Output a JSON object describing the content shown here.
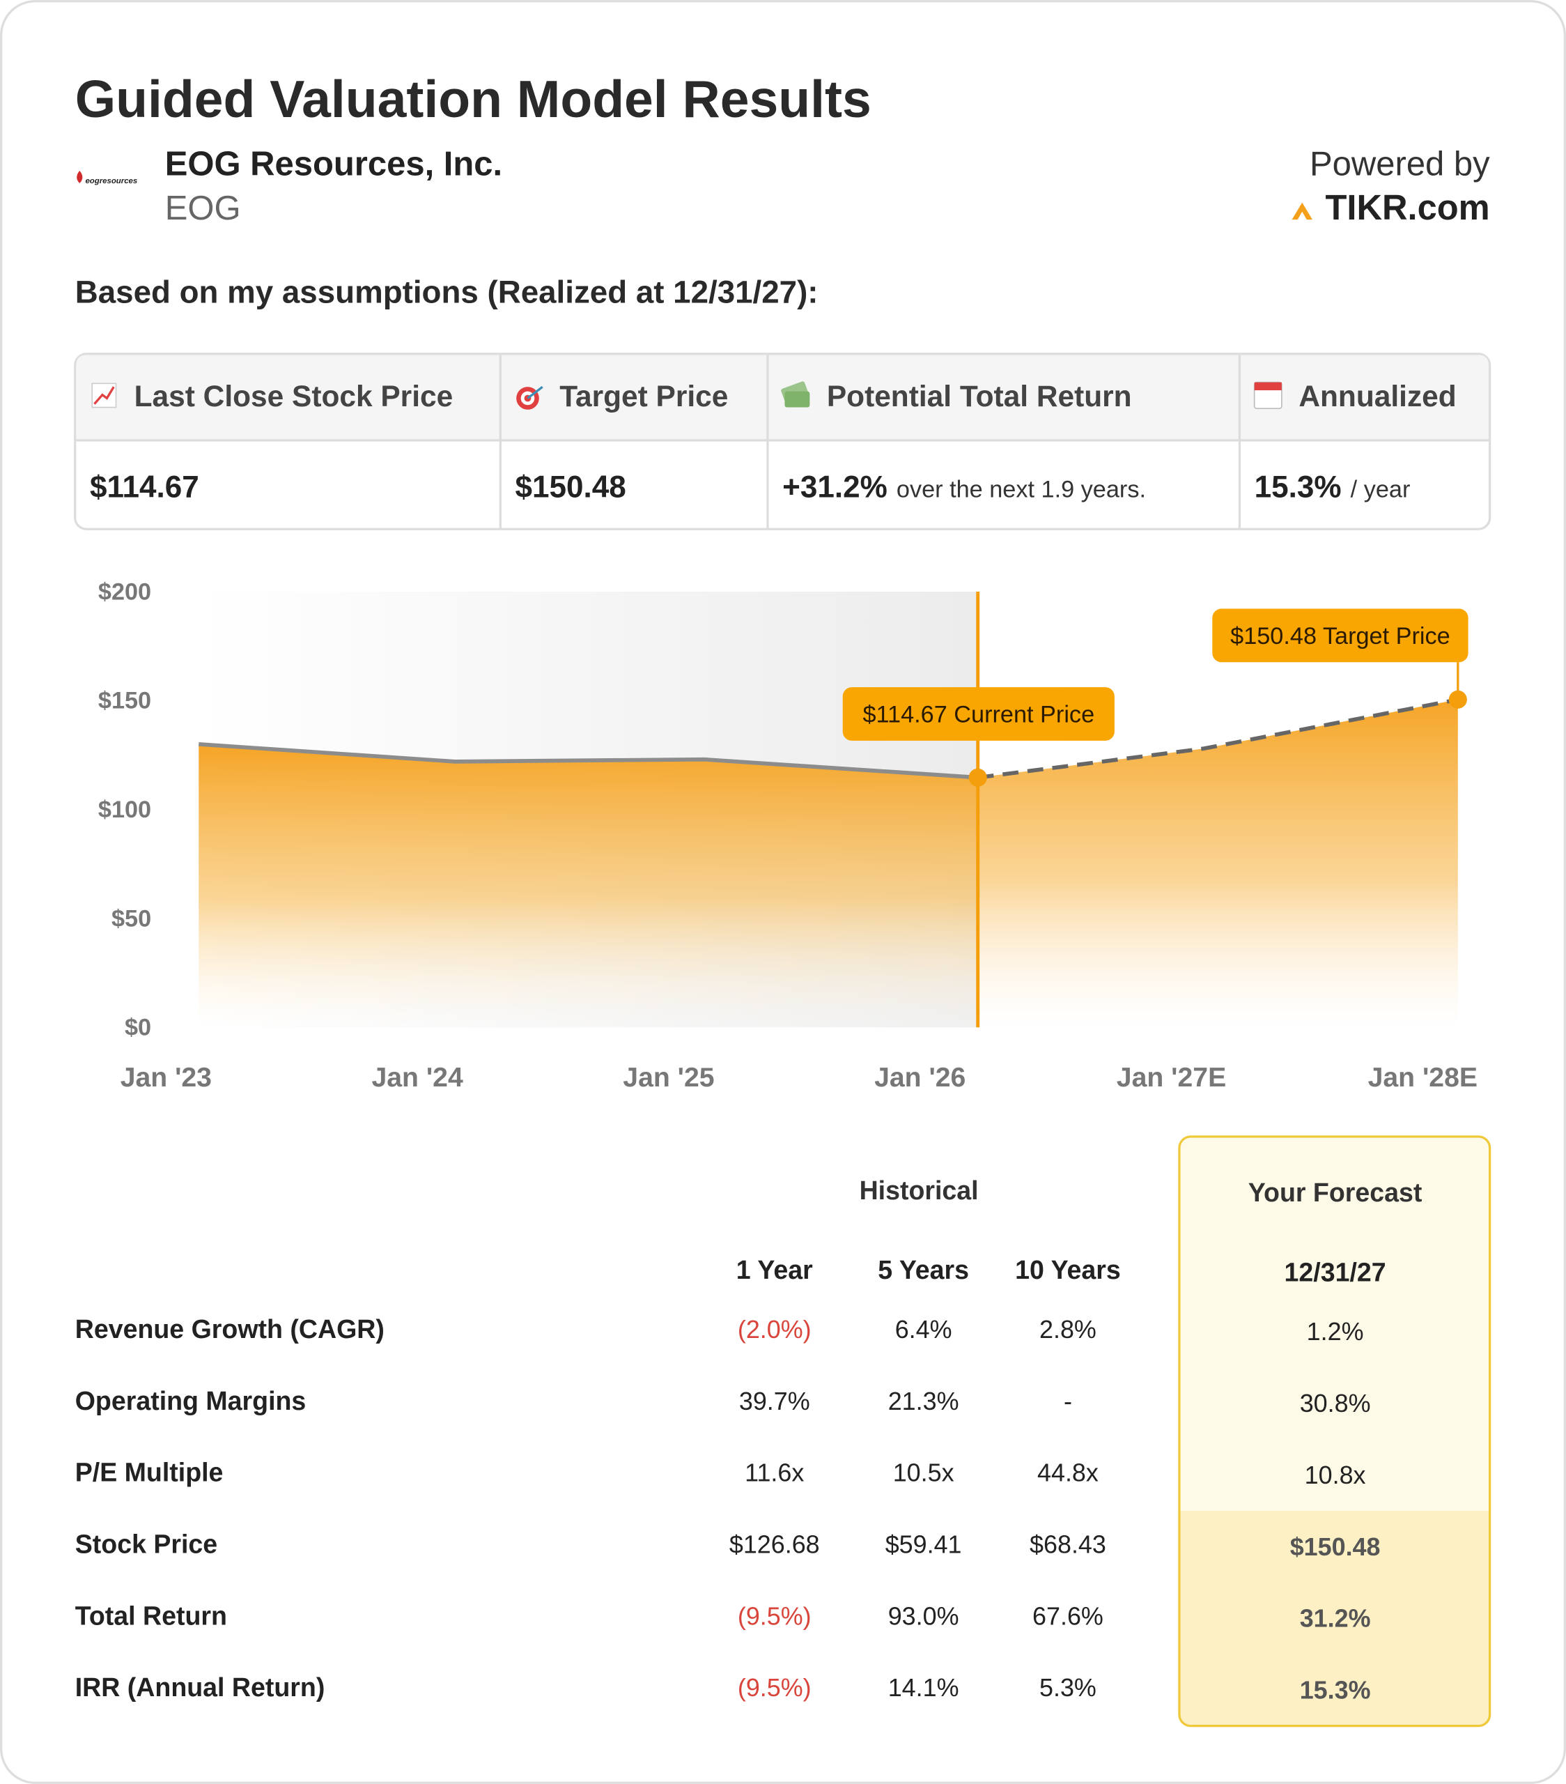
{
  "header": {
    "title": "Guided Valuation Model Results",
    "company": {
      "logo_text": "eogresources",
      "name": "EOG Resources, Inc.",
      "ticker": "EOG"
    },
    "powered_by": "Powered by",
    "brand": "TIKR.com"
  },
  "subtitle": "Based on my assumptions (Realized at 12/31/27):",
  "summary": {
    "columns": [
      "Last Close Stock Price",
      "Target Price",
      "Potential Total Return",
      "Annualized"
    ],
    "values": [
      {
        "main": "$114.67"
      },
      {
        "main": "$150.48"
      },
      {
        "main": "+31.2%",
        "suffix": "over the next 1.9 years."
      },
      {
        "main": "15.3%",
        "suffix": "/ year"
      }
    ]
  },
  "chart_data": {
    "type": "area",
    "x": [
      2023.13,
      2024.15,
      2025.14,
      2026.23,
      2027.13,
      2028.14
    ],
    "series": [
      {
        "color": "#8c8c8c",
        "values": [
          130,
          122,
          123,
          114.67,
          null,
          null
        ]
      },
      {
        "color": "#666666",
        "dashed": true,
        "values": [
          null,
          null,
          null,
          114.67,
          128,
          150.48
        ]
      }
    ],
    "area_color": "#f5a01a",
    "divider_color": "#f59e0b",
    "xlim": [
      2023,
      2028
    ],
    "xticks": [
      {
        "value": 2023,
        "label": "Jan '23"
      },
      {
        "value": 2024,
        "label": "Jan '24"
      },
      {
        "value": 2025,
        "label": "Jan '25"
      },
      {
        "value": 2026,
        "label": "Jan '26"
      },
      {
        "value": 2027,
        "label": "Jan '27E"
      },
      {
        "value": 2028,
        "label": "Jan '28E"
      }
    ],
    "ylim": [
      0,
      200
    ],
    "yticks": [
      {
        "value": 0,
        "label": "$0"
      },
      {
        "value": 50,
        "label": "$50"
      },
      {
        "value": 100,
        "label": "$100"
      },
      {
        "value": 150,
        "label": "$150"
      },
      {
        "value": 200,
        "label": "$200"
      }
    ],
    "annotations": [
      "$114.67 Current Price",
      "$150.48 Target Price"
    ]
  },
  "metrics": {
    "groups": {
      "historical": "Historical",
      "forecast": "Your Forecast"
    },
    "columns": [
      "1 Year",
      "5 Years",
      "10 Years",
      "12/31/27"
    ],
    "rows": [
      {
        "label": "Revenue Growth (CAGR)",
        "values": [
          "(2.0%)",
          "6.4%",
          "2.8%",
          "1.2%"
        ]
      },
      {
        "label": "Operating Margins",
        "values": [
          "39.7%",
          "21.3%",
          "-",
          "30.8%"
        ]
      },
      {
        "label": "P/E Multiple",
        "values": [
          "11.6x",
          "10.5x",
          "44.8x",
          "10.8x"
        ]
      },
      {
        "label": "Stock Price",
        "values": [
          "$126.68",
          "$59.41",
          "$68.43",
          "$150.48"
        ]
      },
      {
        "label": "Total Return",
        "values": [
          "(9.5%)",
          "93.0%",
          "67.6%",
          "31.2%"
        ]
      },
      {
        "label": "IRR (Annual Return)",
        "values": [
          "(9.5%)",
          "14.1%",
          "5.3%",
          "15.3%"
        ]
      }
    ]
  }
}
